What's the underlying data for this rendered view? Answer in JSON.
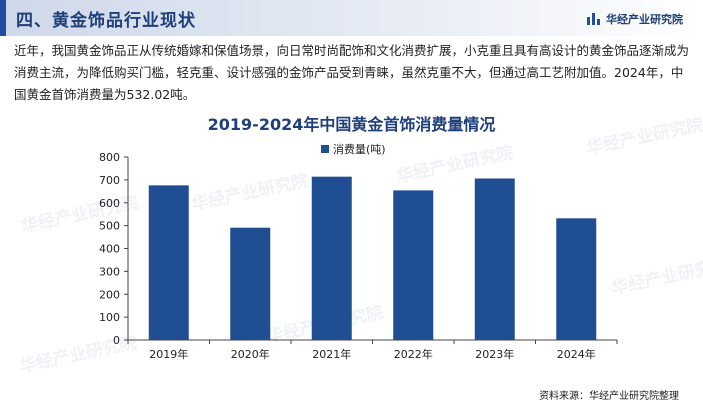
{
  "header": {
    "section_title": "四、黄金饰品行业现状",
    "brand": "华经产业研究院"
  },
  "paragraph": "近年，我国黄金饰品正从传统婚嫁和保值场景，向日常时尚配饰和文化消费扩展，小克重且具有高设计的黄金饰品逐渐成为消费主流，为降低购买门槛，轻克重、设计感强的金饰产品受到青睐，虽然克重不大，但通过高工艺附加值。2024年，中国黄金首饰消费量为532.02吨。",
  "watermark_text": "华经产业研究院",
  "chart_data": {
    "type": "bar",
    "title": "2019-2024年中国黄金首饰消费量情况",
    "categories": [
      "2019年",
      "2020年",
      "2021年",
      "2022年",
      "2023年",
      "2024年"
    ],
    "series": [
      {
        "name": "消费量(吨)",
        "values": [
          676,
          491,
          714,
          654,
          706,
          532.02
        ],
        "color": "#1f4e93"
      }
    ],
    "ylim": [
      0,
      800
    ],
    "yticks": [
      0,
      100,
      200,
      300,
      400,
      500,
      600,
      700,
      800
    ],
    "grid": false,
    "legend_position": "top-center"
  },
  "source": "资料来源：华经产业研究院整理"
}
